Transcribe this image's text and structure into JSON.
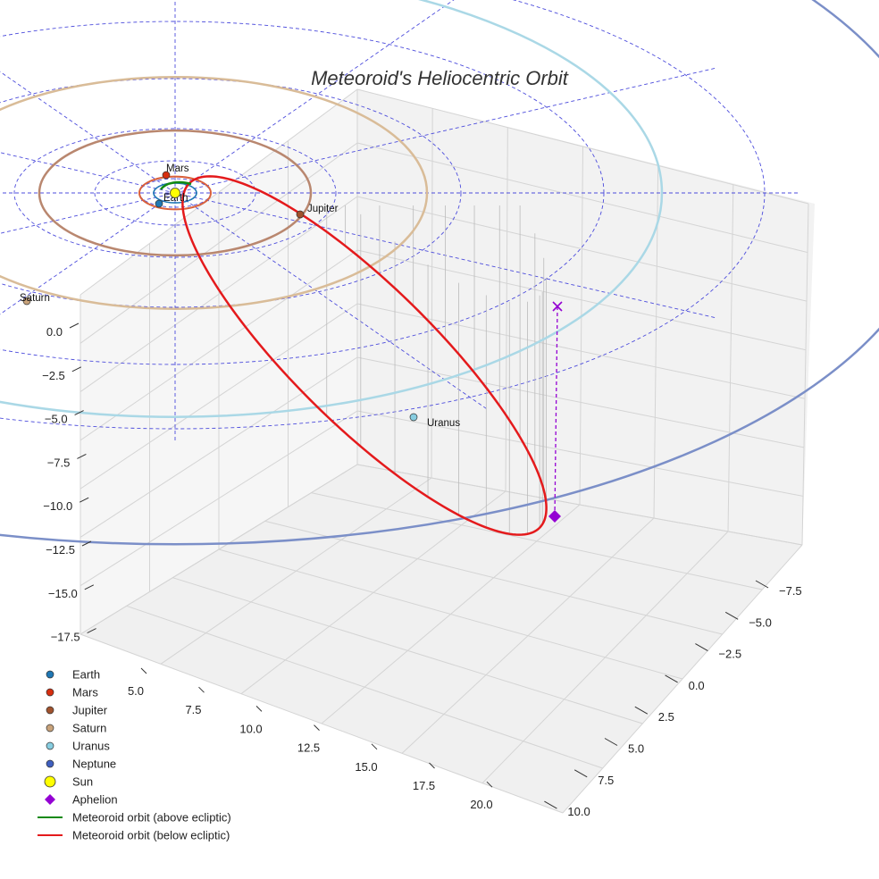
{
  "chart_data": {
    "type": "scatter",
    "title": "Meteoroid's Heliocentric Orbit",
    "axes": {
      "x": {
        "ticks": [
          "5.0",
          "7.5",
          "10.0",
          "12.5",
          "15.0",
          "17.5",
          "20.0"
        ]
      },
      "y": {
        "ticks": [
          "−7.5",
          "−5.0",
          "−2.5",
          "0.0",
          "2.5",
          "5.0",
          "7.5",
          "10.0"
        ]
      },
      "z": {
        "ticks": [
          "0.0",
          "−2.5",
          "−5.0",
          "−7.5",
          "−10.0",
          "−12.5",
          "−15.0",
          "−17.5"
        ]
      }
    },
    "planets": [
      {
        "name": "Earth",
        "color": "#1f77b4"
      },
      {
        "name": "Mars",
        "color": "#d62e0f"
      },
      {
        "name": "Jupiter",
        "color": "#a0522d"
      },
      {
        "name": "Saturn",
        "color": "#c8a27a"
      },
      {
        "name": "Uranus",
        "color": "#87cde0"
      },
      {
        "name": "Neptune",
        "color": "#3f5fbf"
      }
    ],
    "markers": {
      "sun": {
        "name": "Sun",
        "color": "#ffff00"
      },
      "aphelion": {
        "name": "Aphelion",
        "color": "#9400d3"
      }
    },
    "series": [
      {
        "name": "Meteoroid orbit (above ecliptic)",
        "color": "#138a13"
      },
      {
        "name": "Meteoroid orbit (below ecliptic)",
        "color": "#e41a1c"
      }
    ],
    "legend": [
      {
        "label": "Earth",
        "kind": "dot",
        "color": "#1f77b4"
      },
      {
        "label": "Mars",
        "kind": "dot",
        "color": "#d62e0f"
      },
      {
        "label": "Jupiter",
        "kind": "dot",
        "color": "#a0522d"
      },
      {
        "label": "Saturn",
        "kind": "dot",
        "color": "#c8a27a"
      },
      {
        "label": "Uranus",
        "kind": "dot",
        "color": "#87cde0"
      },
      {
        "label": "Neptune",
        "kind": "dot",
        "color": "#3f5fbf"
      },
      {
        "label": "Sun",
        "kind": "sun",
        "color": "#ffff00"
      },
      {
        "label": "Aphelion",
        "kind": "diamond",
        "color": "#9400d3"
      },
      {
        "label": "Meteoroid orbit (above ecliptic)",
        "kind": "line",
        "color": "#138a13"
      },
      {
        "label": "Meteoroid orbit (below ecliptic)",
        "kind": "line",
        "color": "#e41a1c"
      }
    ],
    "legend_position": "bottom-left",
    "grid": true
  }
}
